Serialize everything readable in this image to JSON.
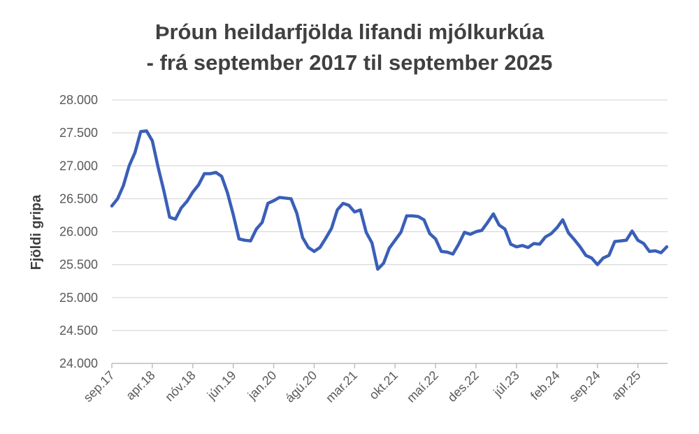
{
  "chart_data": {
    "type": "line",
    "title_line1": "Þróun heildarfjölda lifandi mjólkurkúa",
    "title_line2": "- frá september 2017 til september 2025",
    "xlabel": "",
    "ylabel": "Fjöldi gripa",
    "ylim": [
      24000,
      28000
    ],
    "y_ticks": [
      "24.000",
      "24.500",
      "25.000",
      "25.500",
      "26.000",
      "26.500",
      "27.000",
      "27.500",
      "28.000"
    ],
    "y_tick_values": [
      24000,
      24500,
      25000,
      25500,
      26000,
      26500,
      27000,
      27500,
      28000
    ],
    "x_tick_labels": [
      "sep.17",
      "apr.18",
      "nóv.18",
      "jún.19",
      "jan.20",
      "ágú.20",
      "mar.21",
      "okt.21",
      "maí.22",
      "des.22",
      "júl.23",
      "feb.24",
      "sep.24",
      "apr.25"
    ],
    "x_tick_index": [
      0,
      7,
      14,
      21,
      28,
      35,
      42,
      49,
      56,
      63,
      70,
      77,
      84,
      91
    ],
    "grid": true,
    "line_color": "#3A5FB8",
    "series": [
      {
        "name": "",
        "values": [
          26390,
          26500,
          26700,
          27000,
          27200,
          27520,
          27530,
          27380,
          26980,
          26620,
          26220,
          26190,
          26360,
          26460,
          26600,
          26710,
          26880,
          26880,
          26900,
          26840,
          26590,
          26260,
          25890,
          25870,
          25860,
          26040,
          26140,
          26430,
          26470,
          26520,
          26510,
          26500,
          26280,
          25910,
          25760,
          25700,
          25760,
          25900,
          26050,
          26330,
          26430,
          26400,
          26300,
          26330,
          25990,
          25830,
          25430,
          25520,
          25750,
          25870,
          25990,
          26240,
          26240,
          26230,
          26180,
          25970,
          25890,
          25700,
          25690,
          25660,
          25810,
          25990,
          25960,
          26000,
          26020,
          26140,
          26270,
          26100,
          26040,
          25810,
          25770,
          25790,
          25760,
          25820,
          25810,
          25920,
          25970,
          26060,
          26180,
          25980,
          25880,
          25770,
          25640,
          25600,
          25500,
          25600,
          25640,
          25850,
          25860,
          25870,
          26010,
          25870,
          25820,
          25700,
          25710,
          25680,
          25770
        ]
      }
    ]
  }
}
